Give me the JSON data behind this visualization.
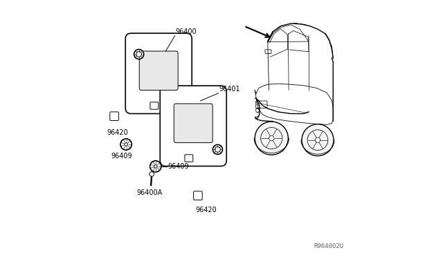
{
  "bg_color": "#ffffff",
  "line_color": "#000000",
  "line_width": 1.2,
  "thin_line": 0.7,
  "fig_width": 6.4,
  "fig_height": 3.72,
  "dpi": 100,
  "watermark": "R964002U",
  "font_size": 7,
  "font_color": "#000000"
}
